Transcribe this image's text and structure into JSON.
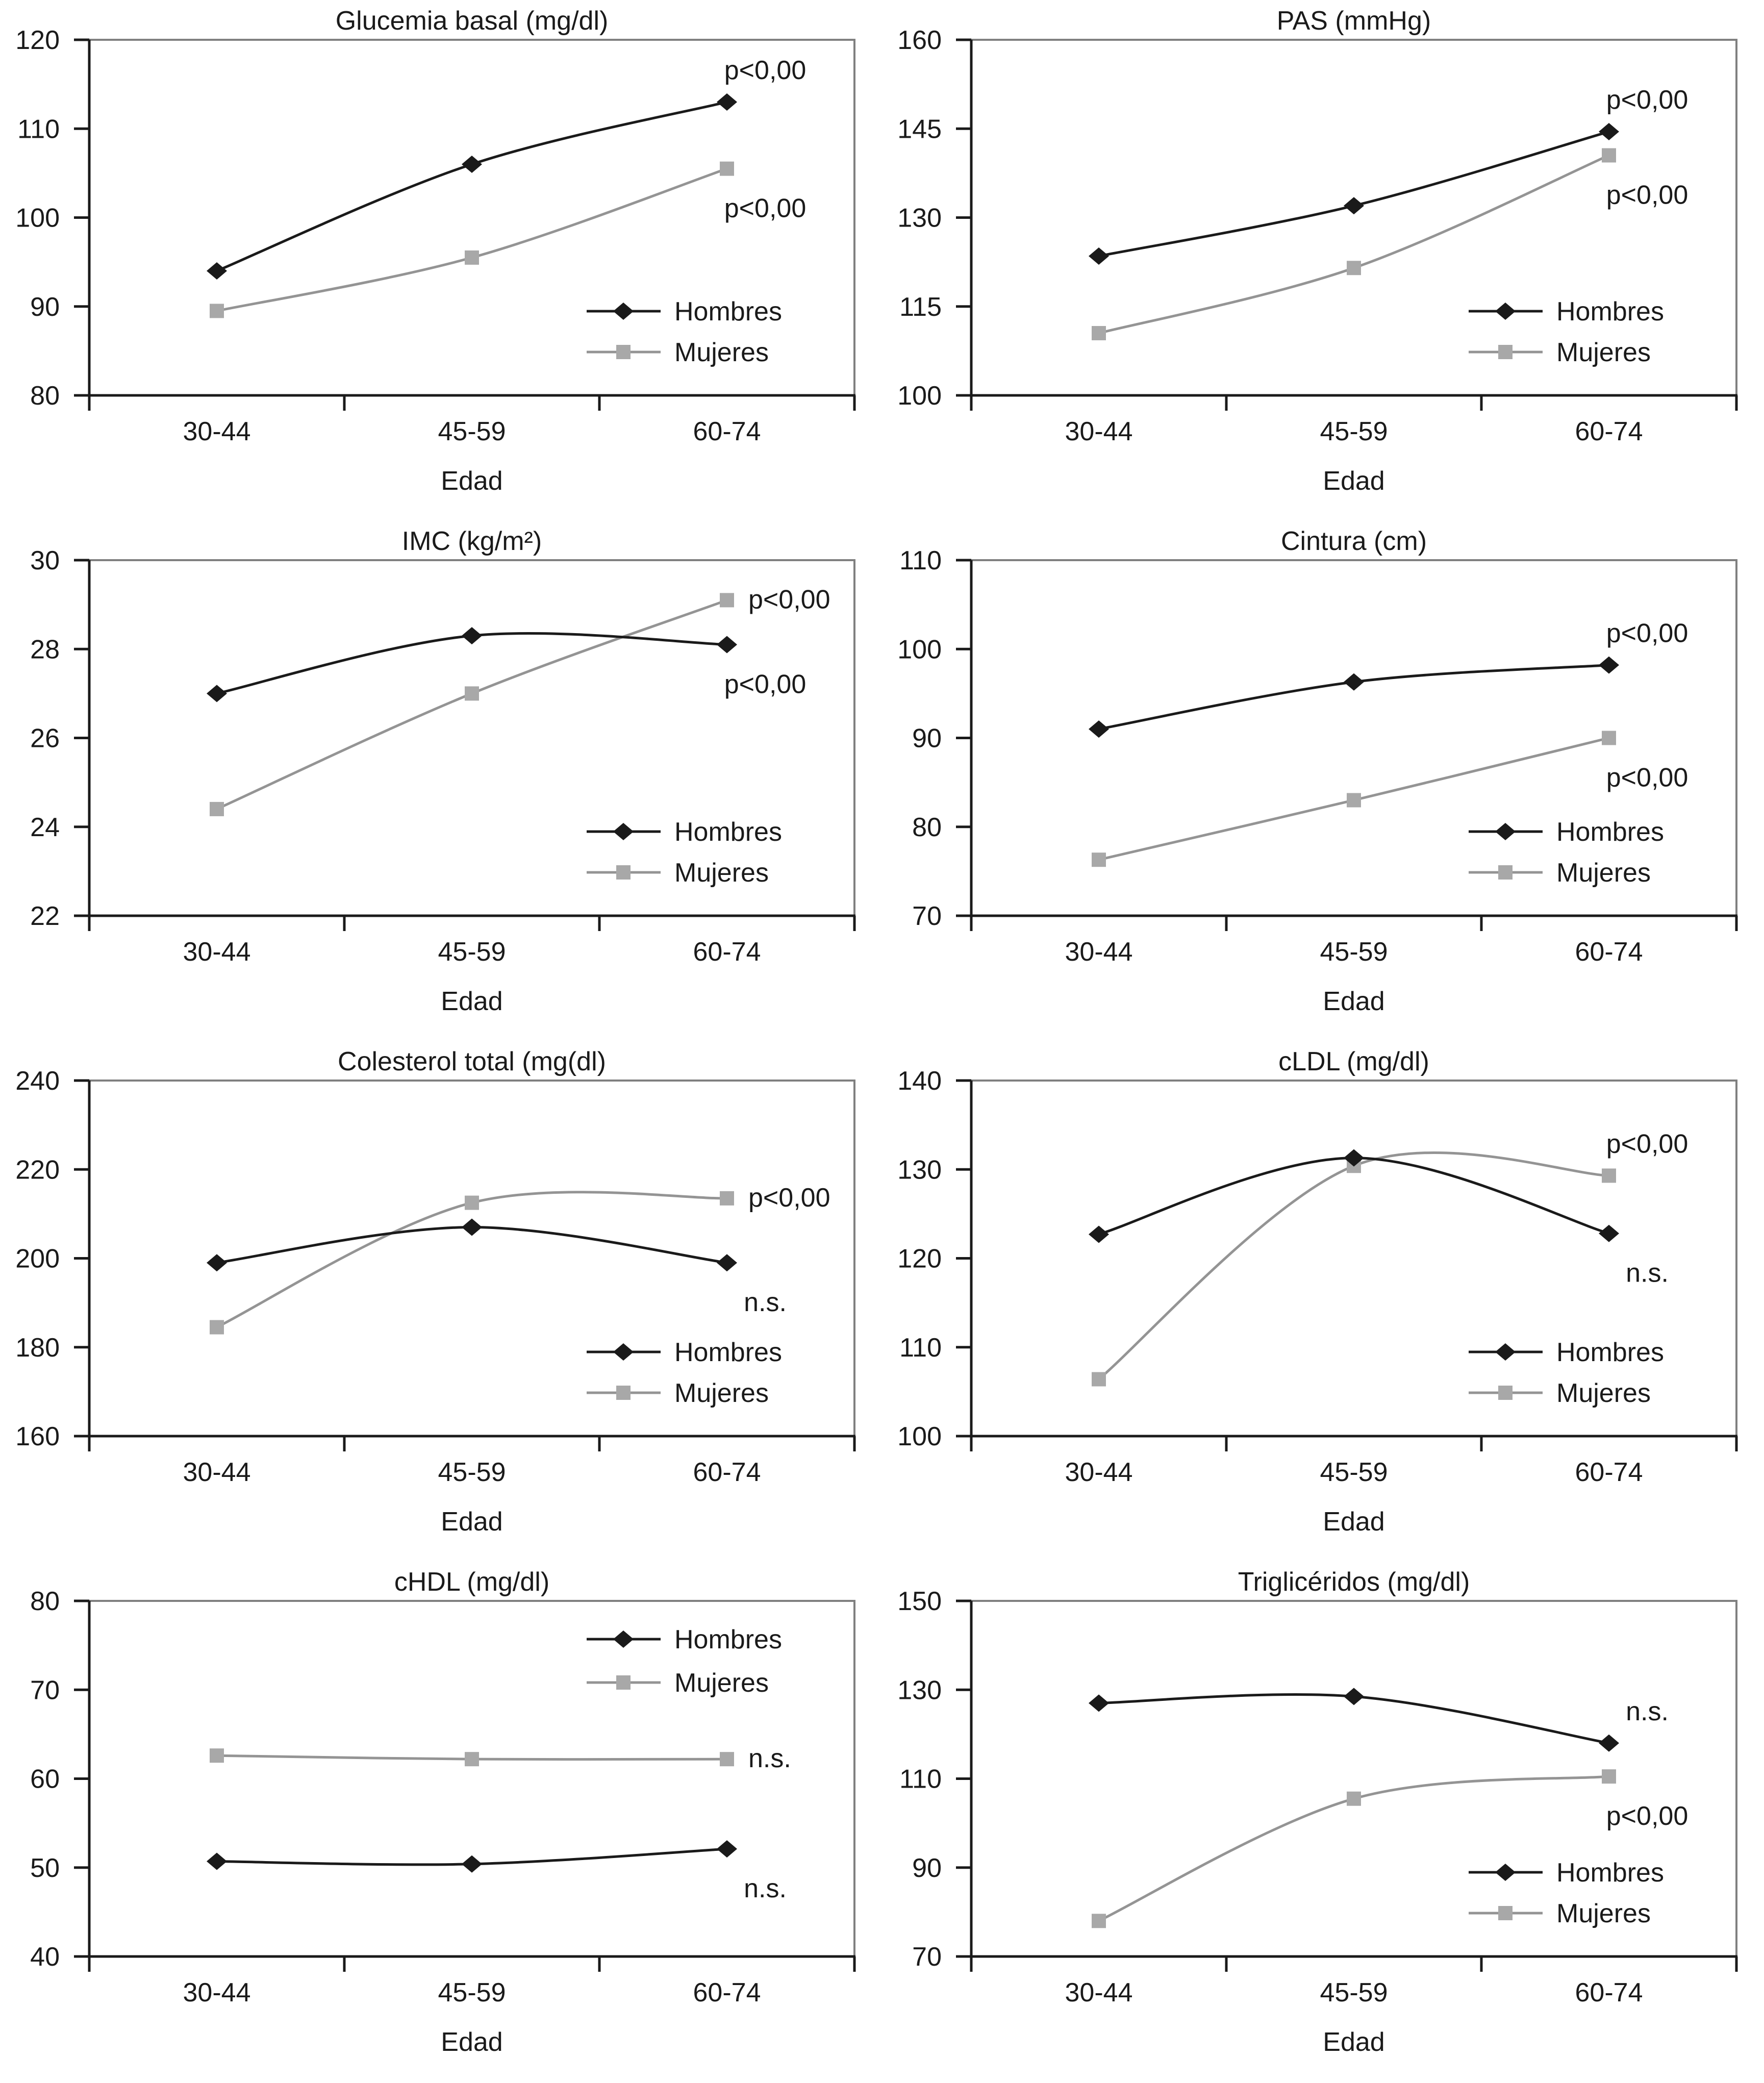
{
  "figure": {
    "x_axis_title": "Edad",
    "categories": [
      "30-44",
      "45-59",
      "60-74"
    ],
    "legend_labels": [
      "Hombres",
      "Mujeres"
    ],
    "colors": {
      "text": "#1a1a1a",
      "hombres_line": "#1a1a1a",
      "hombres_marker": "#1a1a1a",
      "mujeres_line": "#949494",
      "mujeres_marker": "#a8a8a8",
      "plot_border": "#808080",
      "axis": "#1a1a1a",
      "background": "#ffffff"
    }
  },
  "chart_data": [
    {
      "type": "line",
      "title": "Glucemia basal (mg/dl)",
      "xlabel": "Edad",
      "categories": [
        "30-44",
        "45-59",
        "60-74"
      ],
      "ylim": [
        80,
        120
      ],
      "yticks": [
        80,
        90,
        100,
        110,
        120
      ],
      "grid": false,
      "legend_position": "bottom-right",
      "series": [
        {
          "name": "Hombres",
          "marker": "diamond",
          "values": [
            94,
            106,
            113
          ],
          "annotation": "p<0,00",
          "annotation_placement": "above"
        },
        {
          "name": "Mujeres",
          "marker": "square",
          "values": [
            89.5,
            95.5,
            105.5
          ],
          "annotation": "p<0,00",
          "annotation_placement": "below"
        }
      ]
    },
    {
      "type": "line",
      "title": "PAS (mmHg)",
      "xlabel": "Edad",
      "categories": [
        "30-44",
        "45-59",
        "60-74"
      ],
      "ylim": [
        100,
        160
      ],
      "yticks": [
        100,
        115,
        130,
        145,
        160
      ],
      "grid": false,
      "legend_position": "bottom-right",
      "series": [
        {
          "name": "Hombres",
          "marker": "diamond",
          "values": [
            123.5,
            132,
            144.5
          ],
          "annotation": "p<0,00",
          "annotation_placement": "above"
        },
        {
          "name": "Mujeres",
          "marker": "square",
          "values": [
            110.5,
            121.5,
            140.5
          ],
          "annotation": "p<0,00",
          "annotation_placement": "below"
        }
      ]
    },
    {
      "type": "line",
      "title": "IMC (kg/m²)",
      "xlabel": "Edad",
      "categories": [
        "30-44",
        "45-59",
        "60-74"
      ],
      "ylim": [
        22,
        30
      ],
      "yticks": [
        22,
        24,
        26,
        28,
        30
      ],
      "grid": false,
      "legend_position": "bottom-right",
      "series": [
        {
          "name": "Hombres",
          "marker": "diamond",
          "values": [
            27,
            28.3,
            28.1
          ],
          "annotation": "p<0,00",
          "annotation_placement": "below"
        },
        {
          "name": "Mujeres",
          "marker": "square",
          "values": [
            24.4,
            27,
            29.1
          ],
          "annotation": "p<0,00",
          "annotation_placement": "right"
        }
      ]
    },
    {
      "type": "line",
      "title": "Cintura (cm)",
      "xlabel": "Edad",
      "categories": [
        "30-44",
        "45-59",
        "60-74"
      ],
      "ylim": [
        70,
        110
      ],
      "yticks": [
        70,
        80,
        90,
        100,
        110
      ],
      "grid": false,
      "legend_position": "bottom-right",
      "series": [
        {
          "name": "Hombres",
          "marker": "diamond",
          "values": [
            91,
            96.3,
            98.2
          ],
          "annotation": "p<0,00",
          "annotation_placement": "above"
        },
        {
          "name": "Mujeres",
          "marker": "square",
          "values": [
            76.3,
            83,
            90
          ],
          "annotation": "p<0,00",
          "annotation_placement": "below"
        }
      ]
    },
    {
      "type": "line",
      "title": "Colesterol total (mg(dl)",
      "xlabel": "Edad",
      "categories": [
        "30-44",
        "45-59",
        "60-74"
      ],
      "ylim": [
        160,
        240
      ],
      "yticks": [
        160,
        180,
        200,
        220,
        240
      ],
      "grid": false,
      "legend_position": "bottom-right",
      "series": [
        {
          "name": "Hombres",
          "marker": "diamond",
          "values": [
            199,
            207,
            199
          ],
          "annotation": "n.s.",
          "annotation_placement": "below"
        },
        {
          "name": "Mujeres",
          "marker": "square",
          "values": [
            184.5,
            212.5,
            213.5
          ],
          "annotation": "p<0,00",
          "annotation_placement": "right"
        }
      ]
    },
    {
      "type": "line",
      "title": "cLDL (mg/dl)",
      "xlabel": "Edad",
      "categories": [
        "30-44",
        "45-59",
        "60-74"
      ],
      "ylim": [
        100,
        140
      ],
      "yticks": [
        100,
        110,
        120,
        130,
        140
      ],
      "grid": false,
      "legend_position": "bottom-right",
      "series": [
        {
          "name": "Hombres",
          "marker": "diamond",
          "values": [
            122.7,
            131.3,
            122.8
          ],
          "annotation": "n.s.",
          "annotation_placement": "below"
        },
        {
          "name": "Mujeres",
          "marker": "square",
          "values": [
            106.4,
            130.4,
            129.3
          ],
          "annotation": "p<0,00",
          "annotation_placement": "above"
        }
      ]
    },
    {
      "type": "line",
      "title": "cHDL (mg/dl)",
      "xlabel": "Edad",
      "categories": [
        "30-44",
        "45-59",
        "60-74"
      ],
      "ylim": [
        40,
        80
      ],
      "yticks": [
        40,
        50,
        60,
        70,
        80
      ],
      "grid": false,
      "legend_position": "top-right",
      "series": [
        {
          "name": "Hombres",
          "marker": "diamond",
          "values": [
            50.7,
            50.4,
            52.1
          ],
          "annotation": "n.s.",
          "annotation_placement": "below"
        },
        {
          "name": "Mujeres",
          "marker": "square",
          "values": [
            62.6,
            62.2,
            62.2
          ],
          "annotation": "n.s.",
          "annotation_placement": "right"
        }
      ]
    },
    {
      "type": "line",
      "title": "Triglicéridos (mg/dl)",
      "xlabel": "Edad",
      "categories": [
        "30-44",
        "45-59",
        "60-74"
      ],
      "ylim": [
        70,
        150
      ],
      "yticks": [
        70,
        90,
        110,
        130,
        150
      ],
      "grid": false,
      "legend_position": "bottom-right",
      "series": [
        {
          "name": "Hombres",
          "marker": "diamond",
          "values": [
            127,
            128.5,
            118
          ],
          "annotation": "n.s.",
          "annotation_placement": "above"
        },
        {
          "name": "Mujeres",
          "marker": "square",
          "values": [
            78,
            105.5,
            110.5
          ],
          "annotation": "p<0,00",
          "annotation_placement": "below"
        }
      ]
    }
  ]
}
